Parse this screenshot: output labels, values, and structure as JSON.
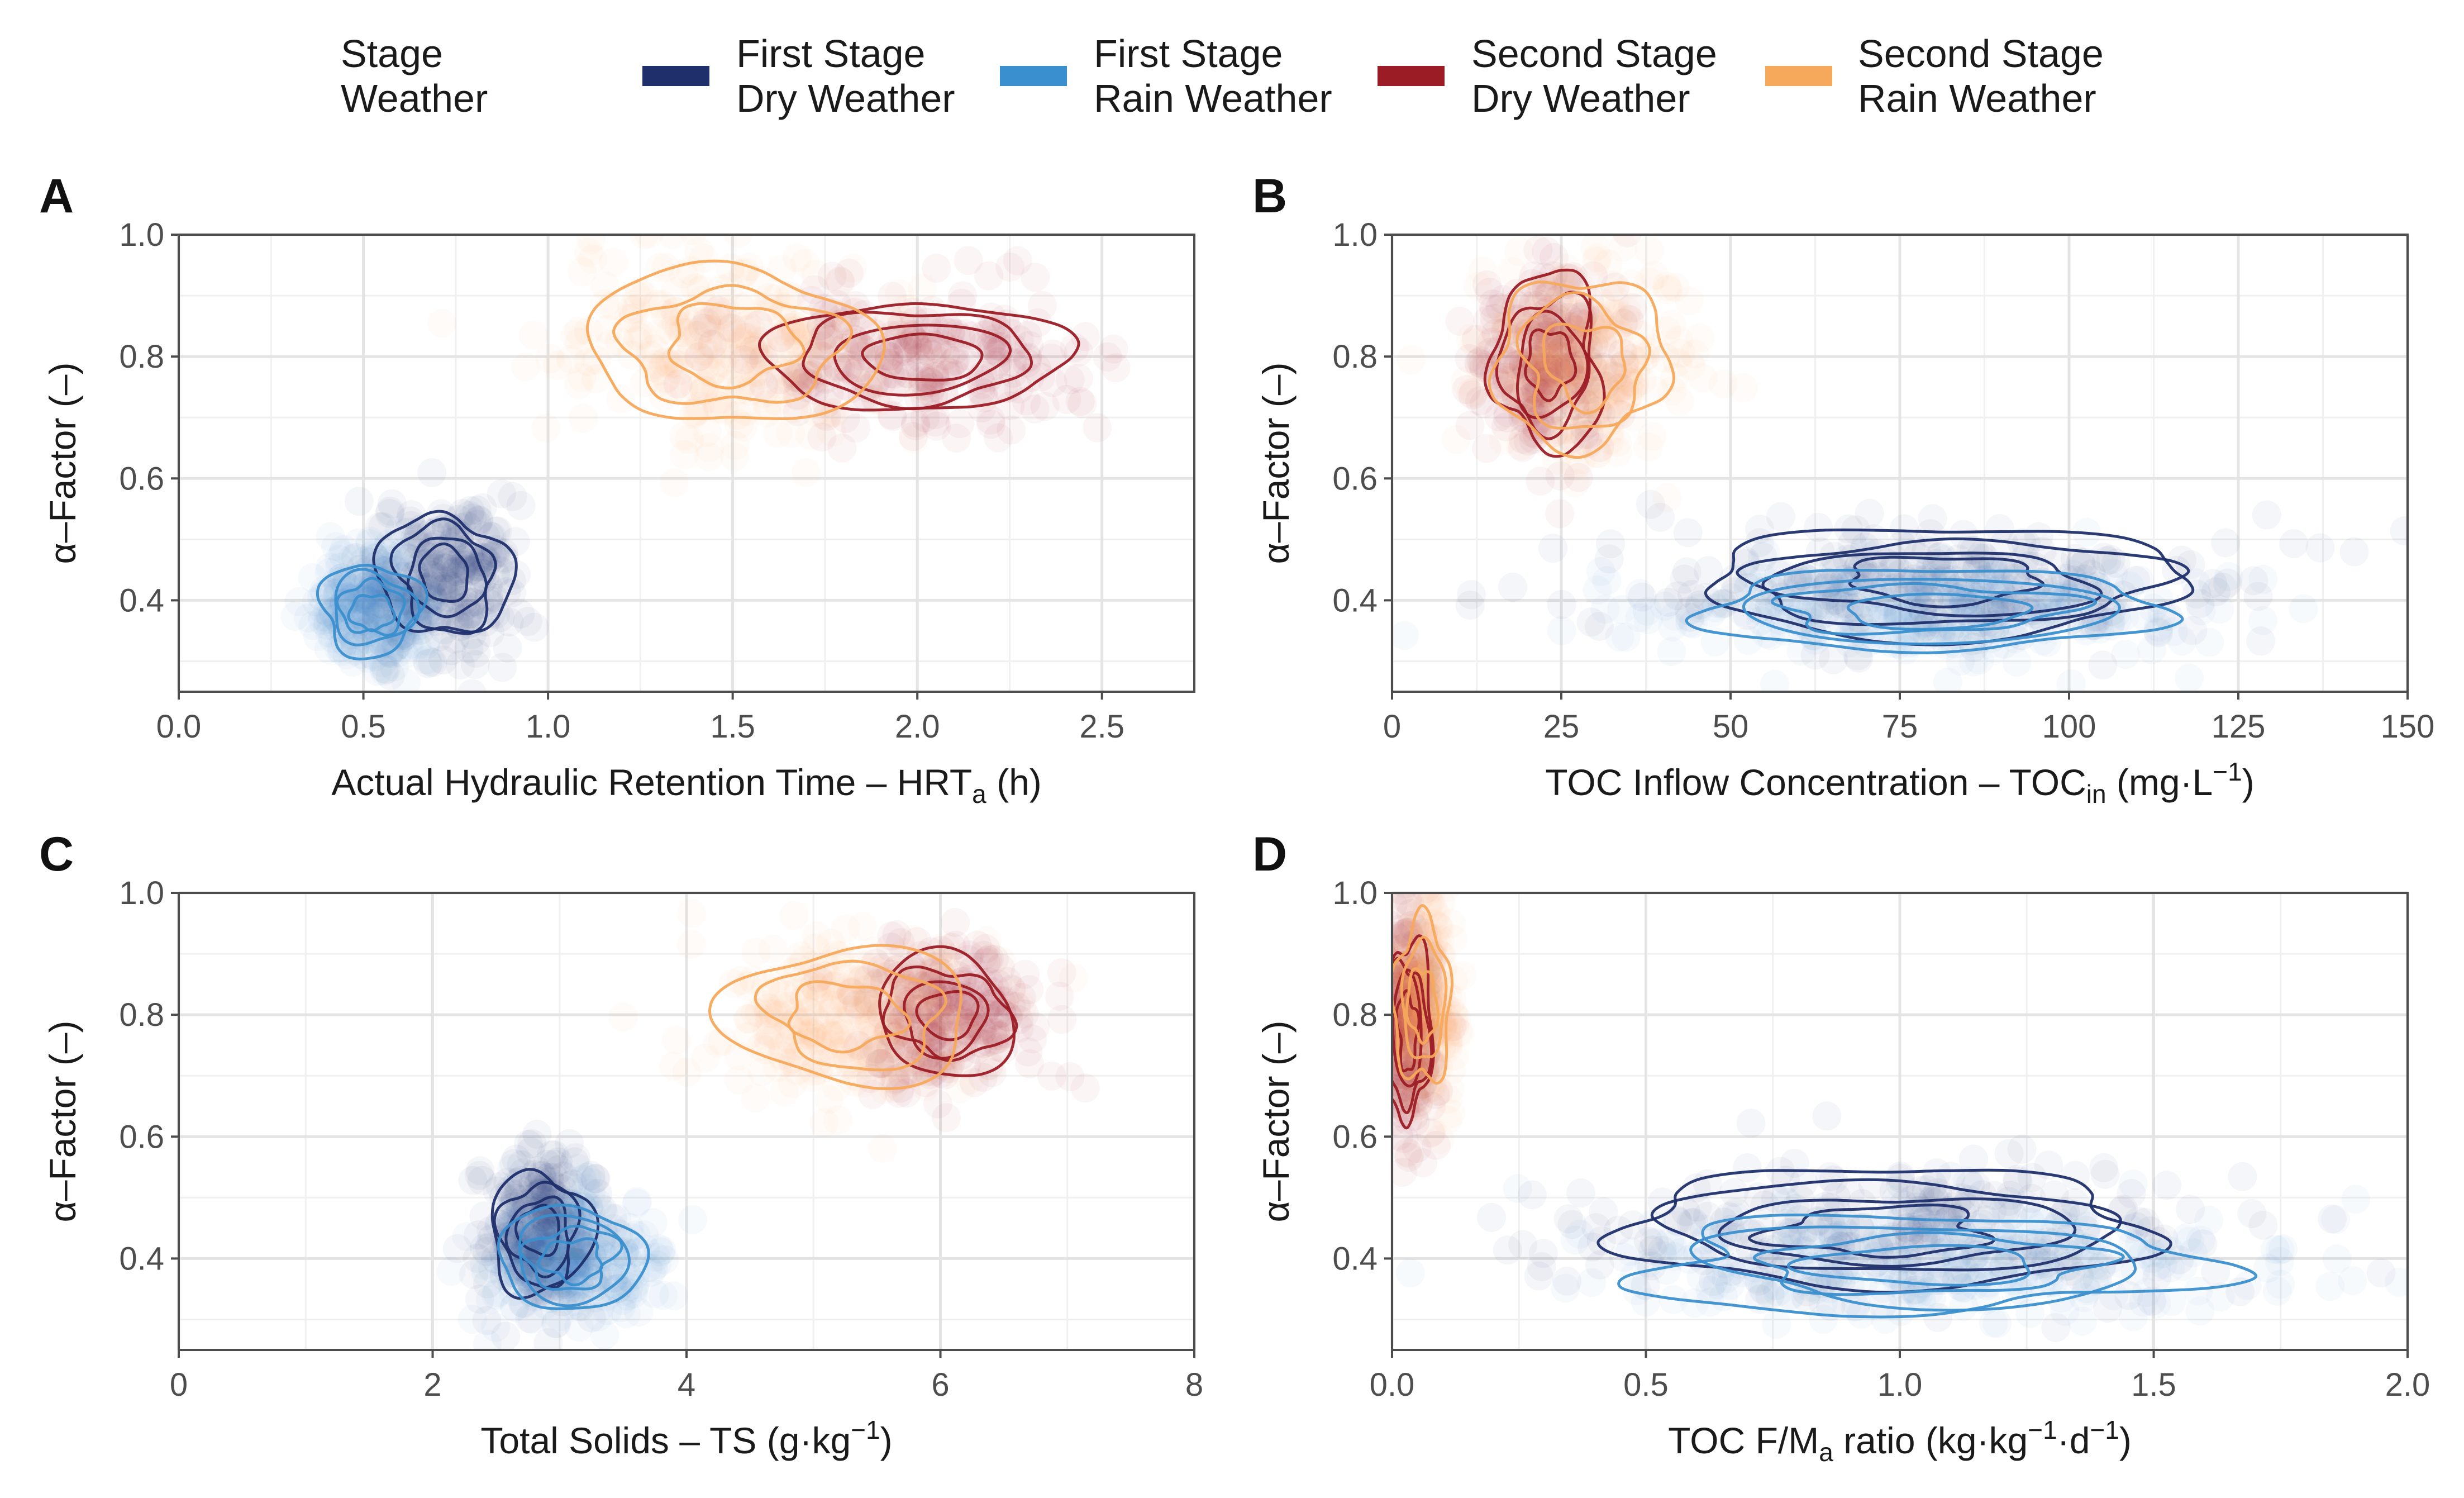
{
  "legend": {
    "title_lines": [
      "Stage",
      "Weather"
    ],
    "entries": [
      {
        "key": "fs_dry",
        "lines": [
          "First Stage",
          "Dry Weather"
        ],
        "color": "#1f2f6b"
      },
      {
        "key": "fs_rain",
        "lines": [
          "First Stage",
          "Rain Weather"
        ],
        "color": "#3a8fce"
      },
      {
        "key": "ss_dry",
        "lines": [
          "Second Stage",
          "Dry Weather"
        ],
        "color": "#9b1c25"
      },
      {
        "key": "ss_rain",
        "lines": [
          "Second Stage",
          "Rain Weather"
        ],
        "color": "#f6a95b"
      }
    ]
  },
  "chart_data": [
    {
      "panel": "A",
      "type": "scatter",
      "xlabel": "Actual Hydraulic Retention Time – HRTa (h)",
      "xlabel_parts": {
        "main": "Actual Hydraulic Retention Time – HRT",
        "sub": "a",
        "post": " (h)",
        "sup": ""
      },
      "ylabel": "α–Factor (–)",
      "xlim": [
        0,
        2.75
      ],
      "ylim": [
        0.25,
        1.0
      ],
      "xticks": [
        0,
        0.5,
        1.0,
        1.5,
        2.0,
        2.5
      ],
      "xtick_labels": [
        "0.0",
        "0.5",
        "1.0",
        "1.5",
        "2.0",
        "2.5"
      ],
      "yticks": [
        0.4,
        0.6,
        0.8,
        1.0
      ],
      "ytick_labels": [
        "0.4",
        "0.6",
        "0.8",
        "1.0"
      ],
      "series": [
        {
          "key": "fs_dry",
          "center": [
            0.72,
            0.44
          ],
          "spread": [
            0.09,
            0.055
          ],
          "contour_levels": 4
        },
        {
          "key": "fs_rain",
          "center": [
            0.52,
            0.385
          ],
          "spread": [
            0.07,
            0.04
          ],
          "contour_levels": 4
        },
        {
          "key": "ss_dry",
          "center": [
            2.0,
            0.8
          ],
          "spread": [
            0.2,
            0.05
          ],
          "contour_levels": 4
        },
        {
          "key": "ss_rain",
          "center": [
            1.5,
            0.82
          ],
          "spread": [
            0.2,
            0.07
          ],
          "contour_levels": 3
        }
      ]
    },
    {
      "panel": "B",
      "type": "scatter",
      "xlabel": "TOC Inflow Concentration – TOCin (mg·L−1)",
      "xlabel_parts": {
        "main": "TOC Inflow Concentration – TOC",
        "sub": "in",
        "post": " (mg·L",
        "sup": "−1",
        "end": ")"
      },
      "ylabel": "α–Factor (–)",
      "xlim": [
        0,
        150
      ],
      "ylim": [
        0.25,
        1.0
      ],
      "xticks": [
        0,
        25,
        50,
        75,
        100,
        125,
        150
      ],
      "xtick_labels": [
        "0",
        "25",
        "50",
        "75",
        "100",
        "125",
        "150"
      ],
      "yticks": [
        0.4,
        0.6,
        0.8,
        1.0
      ],
      "ytick_labels": [
        "0.4",
        "0.6",
        "0.8",
        "1.0"
      ],
      "series": [
        {
          "key": "fs_dry",
          "center": [
            82,
            0.43
          ],
          "spread": [
            20,
            0.045
          ],
          "contour_levels": 4
        },
        {
          "key": "fs_rain",
          "center": [
            80,
            0.385
          ],
          "spread": [
            18,
            0.035
          ],
          "contour_levels": 4
        },
        {
          "key": "ss_dry",
          "center": [
            23,
            0.79
          ],
          "spread": [
            4.5,
            0.07
          ],
          "contour_levels": 4
        },
        {
          "key": "ss_rain",
          "center": [
            28,
            0.79
          ],
          "spread": [
            7,
            0.07
          ],
          "contour_levels": 3
        }
      ]
    },
    {
      "panel": "C",
      "type": "scatter",
      "xlabel": "Total Solids – TS (g·kg−1)",
      "xlabel_parts": {
        "main": "Total Solids – TS (g·kg",
        "sub": "",
        "post": "",
        "sup": "−1",
        "end": ")"
      },
      "ylabel": "α–Factor (–)",
      "xlim": [
        0,
        8
      ],
      "ylim": [
        0.25,
        1.0
      ],
      "xticks": [
        0,
        2,
        4,
        6,
        8
      ],
      "xtick_labels": [
        "0",
        "2",
        "4",
        "6",
        "8"
      ],
      "yticks": [
        0.4,
        0.6,
        0.8,
        1.0
      ],
      "ytick_labels": [
        "0.4",
        "0.6",
        "0.8",
        "1.0"
      ],
      "series": [
        {
          "key": "fs_dry",
          "center": [
            2.85,
            0.44
          ],
          "spread": [
            0.2,
            0.055
          ],
          "contour_levels": 4
        },
        {
          "key": "fs_rain",
          "center": [
            3.1,
            0.4
          ],
          "spread": [
            0.3,
            0.045
          ],
          "contour_levels": 4
        },
        {
          "key": "ss_dry",
          "center": [
            6.05,
            0.8
          ],
          "spread": [
            0.3,
            0.05
          ],
          "contour_levels": 4
        },
        {
          "key": "ss_rain",
          "center": [
            5.3,
            0.8
          ],
          "spread": [
            0.5,
            0.06
          ],
          "contour_levels": 3
        }
      ]
    },
    {
      "panel": "D",
      "type": "scatter",
      "xlabel": "TOC F/Ma ratio (kg·kg−1·d−1)",
      "xlabel_parts": {
        "main": "TOC F/M",
        "sub": "a",
        "post": " ratio (kg·kg",
        "sup": "−1",
        "mid": "·d",
        "sup2": "−1",
        "end": ")"
      },
      "ylabel": "α–Factor (–)",
      "xlim": [
        0,
        2.0
      ],
      "ylim": [
        0.25,
        1.0
      ],
      "xticks": [
        0,
        0.5,
        1.0,
        1.5,
        2.0
      ],
      "xtick_labels": [
        "0.0",
        "0.5",
        "1.0",
        "1.5",
        "2.0"
      ],
      "yticks": [
        0.4,
        0.6,
        0.8,
        1.0
      ],
      "ytick_labels": [
        "0.4",
        "0.6",
        "0.8",
        "1.0"
      ],
      "series": [
        {
          "key": "fs_dry",
          "center": [
            0.98,
            0.45
          ],
          "spread": [
            0.28,
            0.05
          ],
          "contour_levels": 4
        },
        {
          "key": "fs_rain",
          "center": [
            1.05,
            0.39
          ],
          "spread": [
            0.3,
            0.04
          ],
          "contour_levels": 4
        },
        {
          "key": "ss_dry",
          "center": [
            0.03,
            0.77
          ],
          "spread": [
            0.025,
            0.08
          ],
          "contour_levels": 4
        },
        {
          "key": "ss_rain",
          "center": [
            0.06,
            0.82
          ],
          "spread": [
            0.03,
            0.07
          ],
          "contour_levels": 3
        }
      ]
    }
  ]
}
